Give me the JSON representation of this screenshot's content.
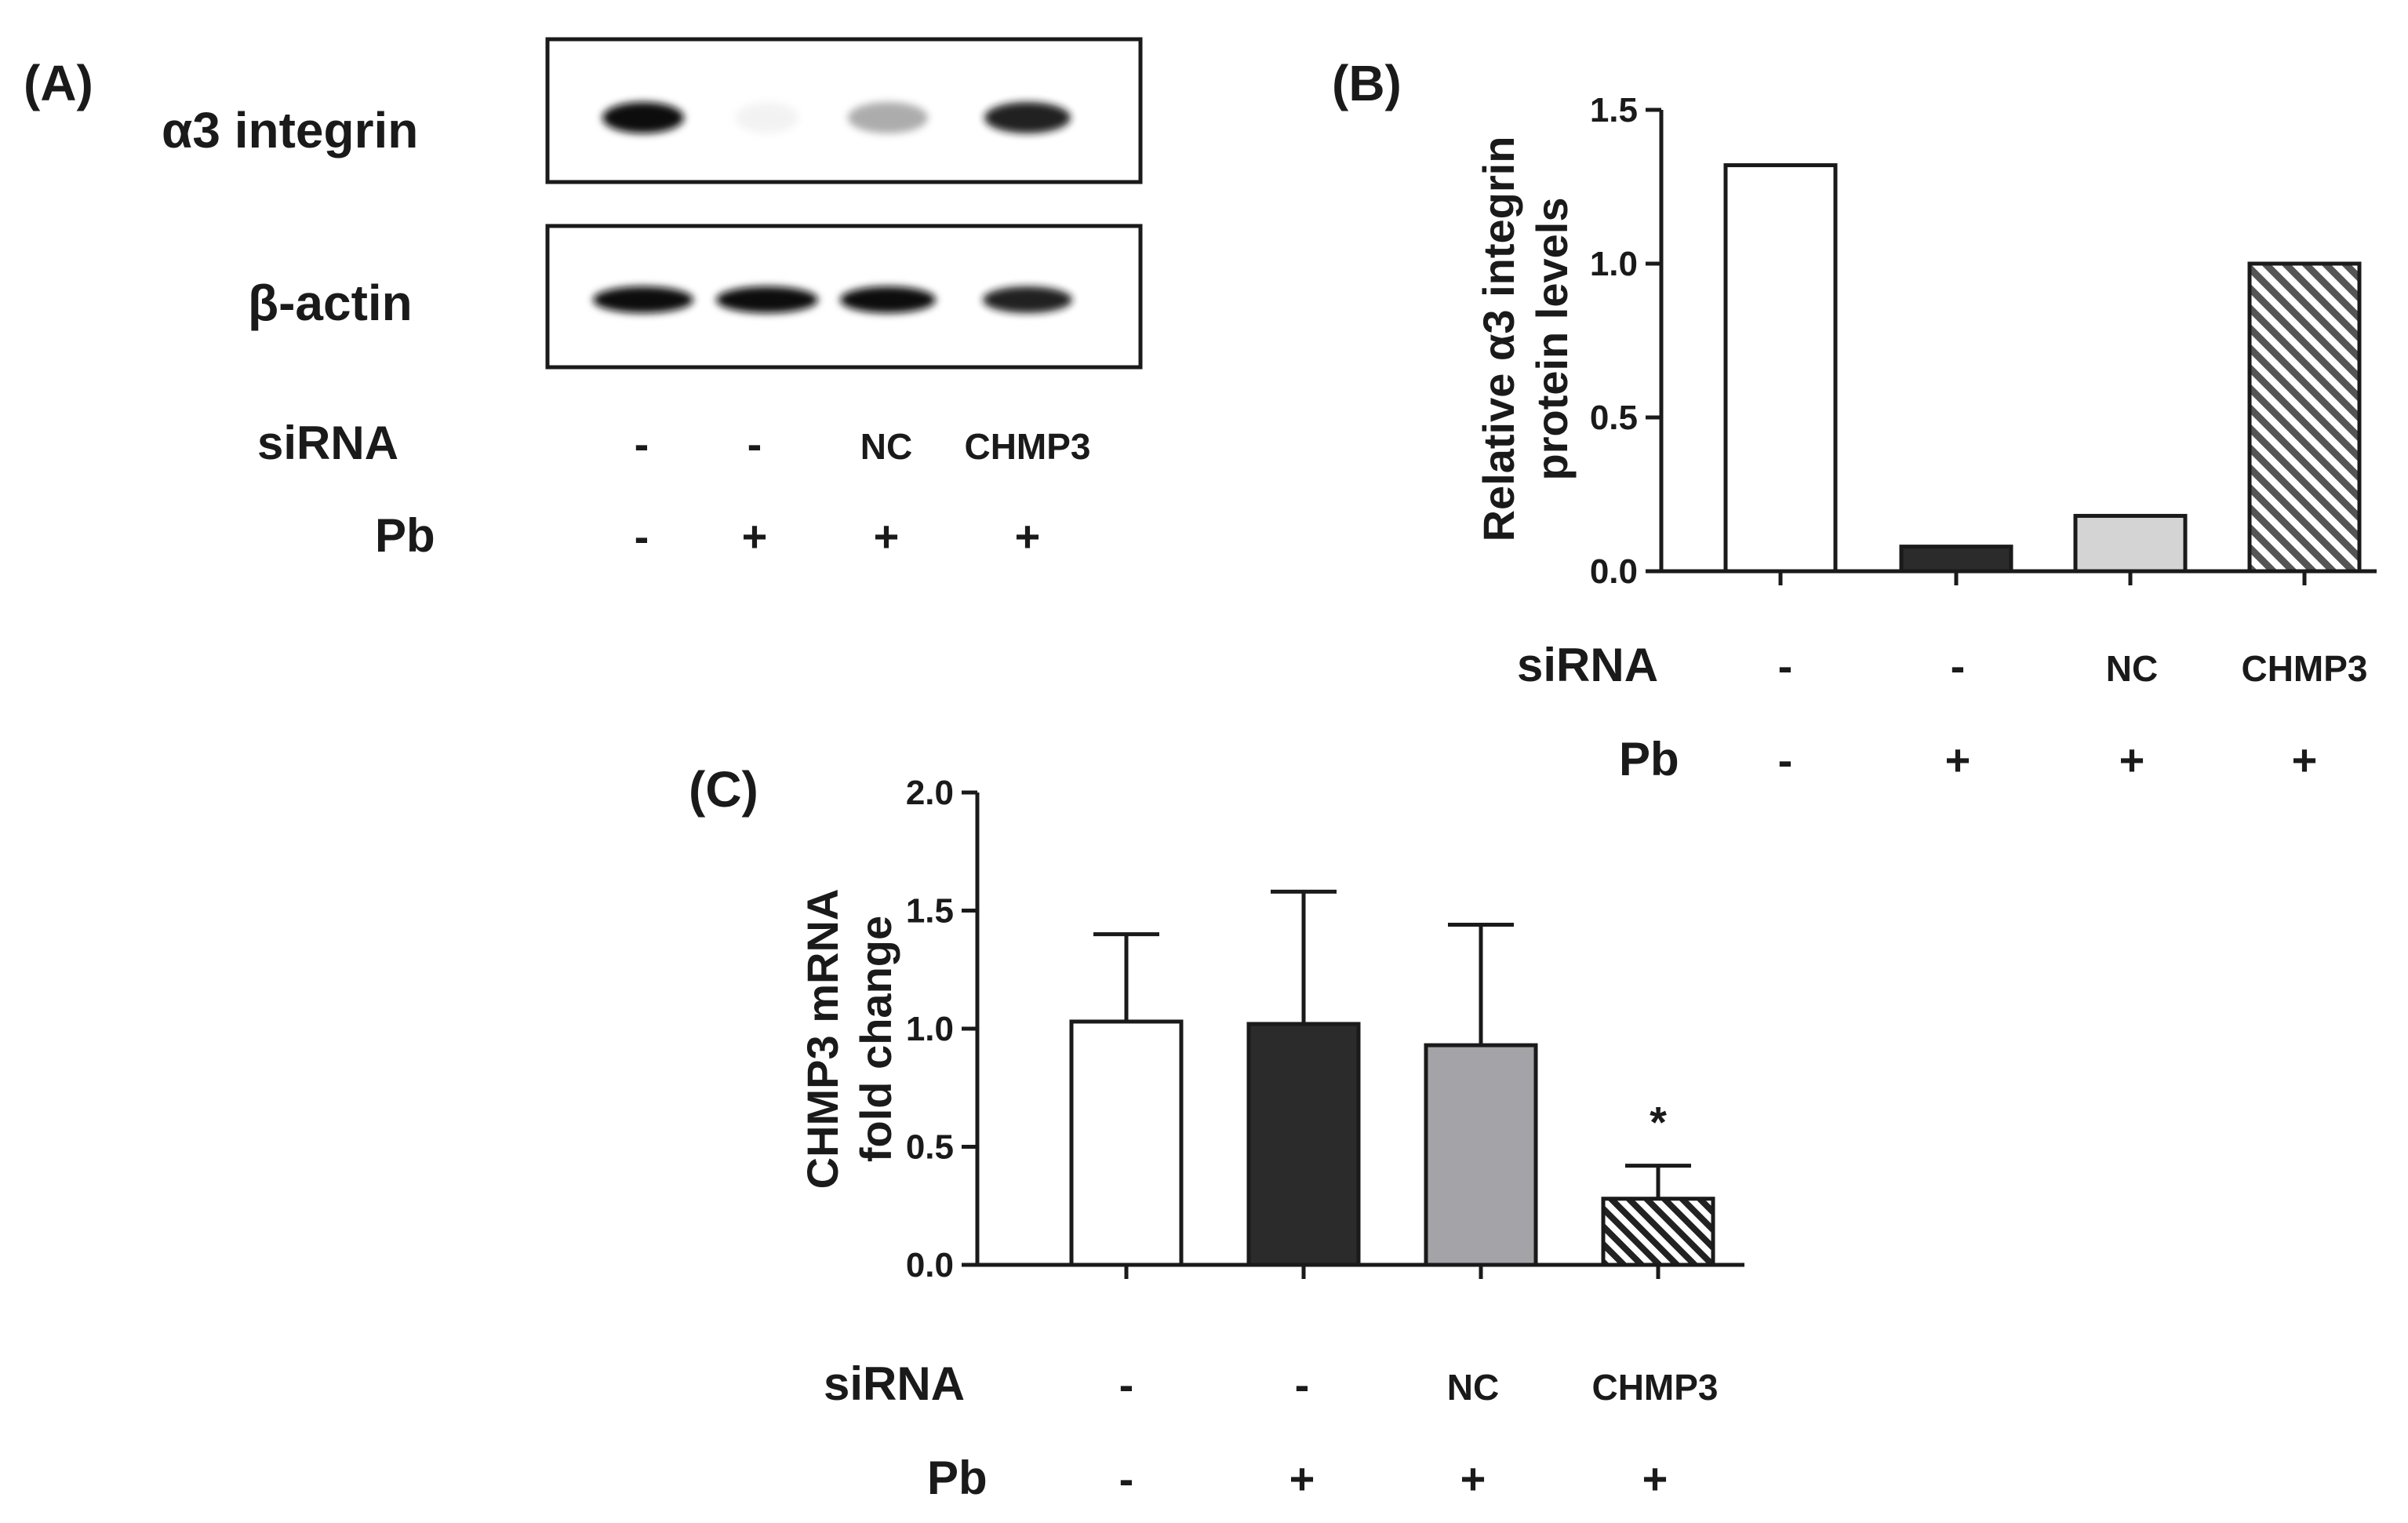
{
  "panels": {
    "A": {
      "letter": "(A)",
      "blots": [
        {
          "label": "α3 integrin",
          "band_intensity": [
            1.0,
            0.04,
            0.55,
            0.95
          ]
        },
        {
          "label": "β-actin",
          "band_intensity": [
            1.0,
            1.0,
            1.0,
            0.95
          ]
        }
      ],
      "conditions": {
        "sirna_label": "siRNA",
        "pb_label": "Pb",
        "sirna_values": [
          "-",
          "-",
          "NC",
          "CHMP3"
        ],
        "pb_values": [
          "-",
          "+",
          "+",
          "+"
        ]
      }
    },
    "B": {
      "letter": "(B)",
      "conditions": {
        "sirna_label": "siRNA",
        "pb_label": "Pb",
        "sirna_values": [
          "-",
          "-",
          "NC",
          "CHMP3"
        ],
        "pb_values": [
          "-",
          "+",
          "+",
          "+"
        ]
      }
    },
    "C": {
      "letter": "(C)",
      "significance_marker": "*",
      "conditions": {
        "sirna_label": "siRNA",
        "pb_label": "Pb",
        "sirna_values": [
          "-",
          "-",
          "NC",
          "CHMP3"
        ],
        "pb_values": [
          "-",
          "+",
          "+",
          "+"
        ]
      }
    }
  },
  "chart_data": [
    {
      "id": "B",
      "type": "bar",
      "categories": [
        "1",
        "2",
        "3",
        "4"
      ],
      "values": [
        1.32,
        0.08,
        0.18,
        1.0
      ],
      "ylabel_lines": [
        "Relative α3 integrin",
        "protein levels"
      ],
      "ylim": [
        0,
        1.5
      ],
      "yticks": [
        0.0,
        0.5,
        1.0,
        1.5
      ],
      "ytick_labels": [
        "0.0",
        "0.5",
        "1.0",
        "1.5"
      ],
      "bar_fills": [
        "#ffffff",
        "#2b2b2b",
        "#d4d4d4",
        "hatch"
      ],
      "grid": false
    },
    {
      "id": "C",
      "type": "bar",
      "categories": [
        "1",
        "2",
        "3",
        "4"
      ],
      "values": [
        1.03,
        1.02,
        0.93,
        0.28
      ],
      "errors": [
        0.37,
        0.56,
        0.51,
        0.14
      ],
      "ylabel_lines": [
        "CHMP3 mRNA",
        "fold change"
      ],
      "ylim": [
        0,
        2.0
      ],
      "yticks": [
        0.0,
        0.5,
        1.0,
        1.5,
        2.0
      ],
      "ytick_labels": [
        "0.0",
        "0.5",
        "1.0",
        "1.5",
        "2.0"
      ],
      "bar_fills": [
        "#ffffff",
        "#2b2b2b",
        "#a4a4a8",
        "hatch"
      ],
      "grid": false
    }
  ]
}
